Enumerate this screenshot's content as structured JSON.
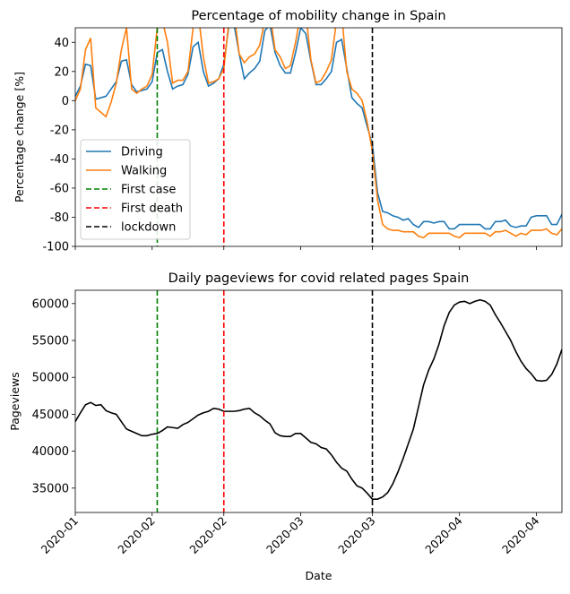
{
  "chart_data": [
    {
      "type": "line",
      "title": "Percentage of mobility change in Spain",
      "ylabel": "Percentage change [%]",
      "x": [
        0,
        1,
        2,
        3,
        4,
        5,
        6,
        7,
        8,
        9,
        10,
        11,
        12,
        13,
        14,
        15,
        16,
        17,
        18,
        19,
        20,
        21,
        22,
        23,
        24,
        25,
        26,
        27,
        28,
        29,
        30,
        31,
        32,
        33,
        34,
        35,
        36,
        37,
        38,
        39,
        40,
        41,
        42,
        43,
        44,
        45,
        46,
        47,
        48,
        49,
        50,
        51,
        52,
        53,
        54,
        55,
        56,
        57,
        58,
        59,
        60,
        61,
        62,
        63,
        64,
        65,
        66,
        67,
        68,
        69,
        70,
        71,
        72,
        73,
        74,
        75,
        76,
        77,
        78,
        79,
        80,
        81,
        82,
        83,
        84,
        85,
        86,
        87,
        88,
        89,
        90,
        91,
        92,
        93,
        94,
        95
      ],
      "series": [
        {
          "name": "Driving",
          "color": "#1f77b4",
          "values": [
            3,
            10,
            25,
            24,
            1,
            2,
            3,
            8,
            13,
            27,
            28,
            11,
            6,
            7,
            8,
            13,
            33,
            35,
            20,
            8,
            10,
            11,
            18,
            37,
            40,
            20,
            10,
            12,
            15,
            25,
            52,
            52,
            32,
            15,
            19,
            22,
            27,
            48,
            52,
            33,
            24,
            19,
            19,
            33,
            50,
            46,
            27,
            11,
            11,
            15,
            20,
            40,
            42,
            22,
            2,
            -2,
            -5,
            -18,
            -30,
            -63,
            -76,
            -77,
            -79,
            -80,
            -82,
            -81,
            -85,
            -87,
            -83,
            -83,
            -84,
            -83,
            -83,
            -88,
            -88,
            -85,
            -85,
            -85,
            -85,
            -85,
            -88,
            -88,
            -83,
            -83,
            -82,
            -86,
            -87,
            -86,
            -86,
            -80,
            -79,
            -79,
            -79,
            -85,
            -85,
            -78
          ]
        },
        {
          "name": "Walking",
          "color": "#ff7f0e",
          "values": [
            0,
            8,
            35,
            43,
            -5,
            -8,
            -11,
            -1,
            12,
            35,
            50,
            8,
            5,
            8,
            10,
            18,
            50,
            55,
            40,
            12,
            14,
            14,
            20,
            50,
            60,
            30,
            12,
            13,
            15,
            22,
            55,
            60,
            32,
            26,
            30,
            32,
            38,
            55,
            60,
            35,
            30,
            22,
            24,
            40,
            60,
            60,
            28,
            12,
            14,
            20,
            28,
            55,
            60,
            20,
            8,
            5,
            0,
            -15,
            -35,
            -68,
            -85,
            -88,
            -89,
            -89,
            -90,
            -90,
            -90,
            -93,
            -94,
            -91,
            -91,
            -91,
            -91,
            -91,
            -93,
            -94,
            -91,
            -91,
            -91,
            -91,
            -91,
            -93,
            -90,
            -90,
            -89,
            -91,
            -93,
            -91,
            -92,
            -89,
            -89,
            -89,
            -88,
            -91,
            -92,
            -88
          ]
        }
      ],
      "vlines": [
        {
          "name": "First case",
          "x": 16,
          "color": "#008000"
        },
        {
          "name": "First death",
          "x": 29,
          "color": "#ff0000"
        },
        {
          "name": "lockdown",
          "x": 58,
          "color": "#000000"
        }
      ],
      "xlim": [
        0,
        95
      ],
      "xticks": [
        0,
        15,
        29,
        44,
        58,
        75,
        90
      ],
      "ylim": [
        -100,
        50
      ],
      "yticks": [
        -100,
        -80,
        -60,
        -40,
        -20,
        0,
        20,
        40
      ],
      "legend": "lower left"
    },
    {
      "type": "line",
      "title": "Daily pageviews for covid related pages Spain",
      "ylabel": "Pageviews",
      "xlabel": "Date",
      "x": [
        0,
        1,
        2,
        3,
        4,
        5,
        6,
        7,
        8,
        9,
        10,
        11,
        12,
        13,
        14,
        15,
        16,
        17,
        18,
        19,
        20,
        21,
        22,
        23,
        24,
        25,
        26,
        27,
        28,
        29,
        30,
        31,
        32,
        33,
        34,
        35,
        36,
        37,
        38,
        39,
        40,
        41,
        42,
        43,
        44,
        45,
        46,
        47,
        48,
        49,
        50,
        51,
        52,
        53,
        54,
        55,
        56,
        57,
        58,
        59,
        60,
        61,
        62,
        63,
        64,
        65,
        66,
        67,
        68,
        69,
        70,
        71,
        72,
        73,
        74,
        75,
        76,
        77,
        78,
        79,
        80,
        81,
        82,
        83,
        84,
        85,
        86,
        87,
        88,
        89,
        90,
        91,
        92,
        93,
        94,
        95
      ],
      "series": [
        {
          "color": "#000000",
          "values": [
            44000,
            45200,
            46300,
            46600,
            46200,
            46300,
            45500,
            45200,
            45000,
            44000,
            43000,
            42700,
            42400,
            42100,
            42100,
            42300,
            42400,
            42800,
            43300,
            43200,
            43100,
            43600,
            43900,
            44400,
            44900,
            45200,
            45400,
            45800,
            45700,
            45400,
            45400,
            45400,
            45500,
            45700,
            45800,
            45200,
            44800,
            44200,
            43700,
            42500,
            42100,
            42000,
            42000,
            42400,
            42400,
            41800,
            41200,
            41000,
            40500,
            40300,
            39500,
            38500,
            37700,
            37300,
            36200,
            35300,
            35000,
            34300,
            33500,
            33500,
            33800,
            34400,
            35600,
            37200,
            39000,
            41000,
            43000,
            46000,
            49000,
            51000,
            52500,
            54500,
            57000,
            58800,
            59800,
            60200,
            60300,
            60000,
            60300,
            60500,
            60300,
            59800,
            58500,
            57400,
            56200,
            55000,
            53500,
            52200,
            51200,
            50500,
            49600,
            49500,
            49600,
            50400,
            51800,
            53800
          ]
        }
      ],
      "vlines": [
        {
          "x": 16,
          "color": "#008000"
        },
        {
          "x": 29,
          "color": "#ff0000"
        },
        {
          "x": 58,
          "color": "#000000"
        }
      ],
      "xlim": [
        0,
        95
      ],
      "xticks": [
        {
          "value": 0,
          "label": "2020-01"
        },
        {
          "value": 15,
          "label": "2020-02"
        },
        {
          "value": 29,
          "label": "2020-02"
        },
        {
          "value": 44,
          "label": "2020-03"
        },
        {
          "value": 58,
          "label": "2020-03"
        },
        {
          "value": 75,
          "label": "2020-04"
        },
        {
          "value": 90,
          "label": "2020-04"
        }
      ],
      "ylim": [
        31700,
        61800
      ],
      "yticks": [
        35000,
        40000,
        45000,
        50000,
        55000,
        60000
      ]
    }
  ]
}
